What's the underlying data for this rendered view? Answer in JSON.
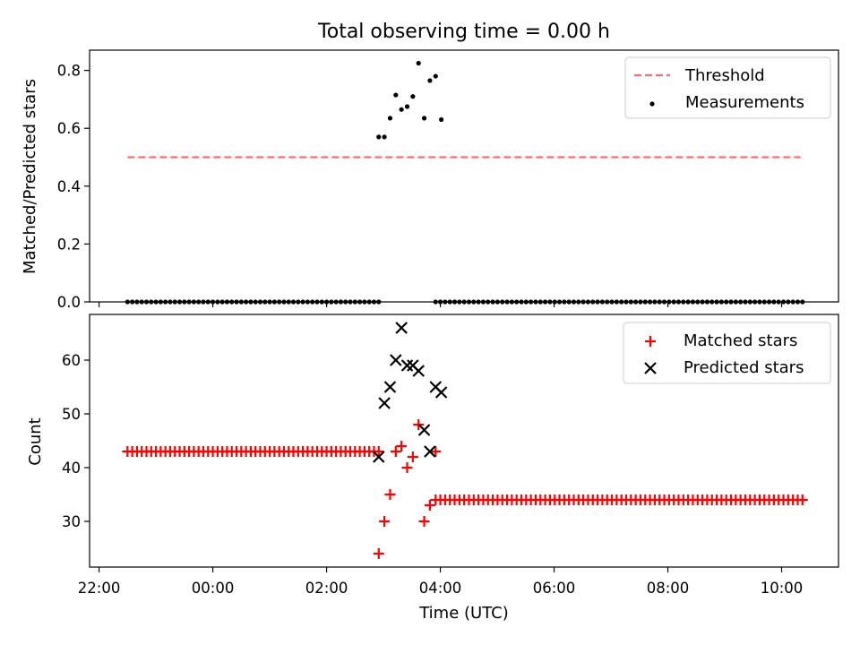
{
  "chart_data": [
    {
      "type": "scatter",
      "title": "Total observing time = 0.00 h",
      "ylabel": "Matched/Predicted stars",
      "xlim": [
        "21:50",
        "11:00"
      ],
      "ylim": [
        0,
        0.87
      ],
      "yticks": [
        "0.0",
        "0.2",
        "0.4",
        "0.6",
        "0.8"
      ],
      "grid": false,
      "legend_position": "top-right",
      "threshold": {
        "name": "Threshold",
        "value": 0.5,
        "x_start": "22:30",
        "x_end": "10:20",
        "color": "#ff6e6e",
        "style": "dashed"
      },
      "series": [
        {
          "name": "Measurements",
          "color": "#000000",
          "marker": "dot",
          "zero_ranges": [
            {
              "x_start": "22:30",
              "x_end": "02:55",
              "count": 54
            },
            {
              "x_start": "03:55",
              "x_end": "10:22",
              "count": 78
            }
          ],
          "points": [
            {
              "x": "02:55",
              "y": 0.57
            },
            {
              "x": "03:01",
              "y": 0.57
            },
            {
              "x": "03:07",
              "y": 0.635
            },
            {
              "x": "03:13",
              "y": 0.715
            },
            {
              "x": "03:19",
              "y": 0.665
            },
            {
              "x": "03:25",
              "y": 0.675
            },
            {
              "x": "03:31",
              "y": 0.71
            },
            {
              "x": "03:37",
              "y": 0.825
            },
            {
              "x": "03:43",
              "y": 0.635
            },
            {
              "x": "03:49",
              "y": 0.765
            },
            {
              "x": "03:55",
              "y": 0.78
            },
            {
              "x": "04:01",
              "y": 0.63
            }
          ]
        }
      ]
    },
    {
      "type": "scatter",
      "xlabel": "Time (UTC)",
      "ylabel": "Count",
      "xlim": [
        "21:50",
        "11:00"
      ],
      "ylim": [
        21.5,
        68.5
      ],
      "xticks": [
        "22:00",
        "00:00",
        "02:00",
        "04:00",
        "06:00",
        "08:00",
        "10:00"
      ],
      "yticks": [
        "30",
        "40",
        "50",
        "60"
      ],
      "grid": false,
      "legend_position": "top-right",
      "series": [
        {
          "name": "Matched stars",
          "color": "#ff0000",
          "marker": "plus",
          "constant_ranges": [
            {
              "x_start": "22:30",
              "x_end": "02:55",
              "y": 43,
              "count": 54
            },
            {
              "x_start": "03:55",
              "x_end": "10:22",
              "y": 34,
              "count": 78
            }
          ],
          "points": [
            {
              "x": "02:55",
              "y": 24
            },
            {
              "x": "03:01",
              "y": 30
            },
            {
              "x": "03:07",
              "y": 35
            },
            {
              "x": "03:13",
              "y": 43
            },
            {
              "x": "03:19",
              "y": 44
            },
            {
              "x": "03:25",
              "y": 40
            },
            {
              "x": "03:31",
              "y": 42
            },
            {
              "x": "03:37",
              "y": 48
            },
            {
              "x": "03:43",
              "y": 30
            },
            {
              "x": "03:49",
              "y": 33
            },
            {
              "x": "03:55",
              "y": 43
            }
          ]
        },
        {
          "name": "Predicted stars",
          "color": "#000000",
          "marker": "x",
          "points": [
            {
              "x": "02:55",
              "y": 42
            },
            {
              "x": "03:01",
              "y": 52
            },
            {
              "x": "03:07",
              "y": 55
            },
            {
              "x": "03:13",
              "y": 60
            },
            {
              "x": "03:19",
              "y": 66
            },
            {
              "x": "03:25",
              "y": 59
            },
            {
              "x": "03:31",
              "y": 59
            },
            {
              "x": "03:37",
              "y": 58
            },
            {
              "x": "03:43",
              "y": 47
            },
            {
              "x": "03:49",
              "y": 43
            },
            {
              "x": "03:55",
              "y": 55
            },
            {
              "x": "04:01",
              "y": 54
            }
          ]
        }
      ]
    }
  ]
}
